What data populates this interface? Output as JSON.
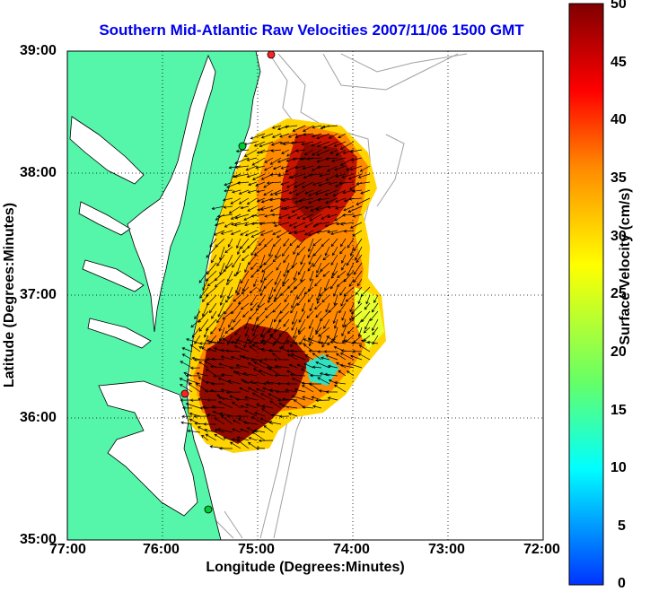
{
  "title": "Southern Mid-Atlantic Raw Velocities 2007/11/06 1500 GMT",
  "axes": {
    "xlabel": "Longitude (Degrees:Minutes)",
    "ylabel": "Latitude (Degrees:Minutes)",
    "x_ticks": [
      "77:00",
      "76:00",
      "75:00",
      "74:00",
      "73:00",
      "72:00"
    ],
    "y_ticks": [
      "39:00",
      "38:00",
      "37:00",
      "36:00",
      "35:00"
    ],
    "xlim": [
      -77,
      -72
    ],
    "ylim": [
      35,
      39
    ],
    "grid": "dotted"
  },
  "colorbar": {
    "label": "Surface Velocity (cm/s)",
    "ticks": [
      "50",
      "45",
      "40",
      "35",
      "30",
      "25",
      "20",
      "15",
      "10",
      "5",
      "0"
    ],
    "range": [
      0,
      50
    ],
    "colors": [
      "#0033ff",
      "#00ffff",
      "#66ff66",
      "#ffff00",
      "#ff8800",
      "#ff0000",
      "#800000"
    ]
  },
  "colors": {
    "land": "#55f5aa",
    "water": "#ffffff",
    "bathymetry": "#a0a0a0",
    "arrows": "#000000",
    "station_green": "#00cc33",
    "station_red": "#ff2222"
  }
}
